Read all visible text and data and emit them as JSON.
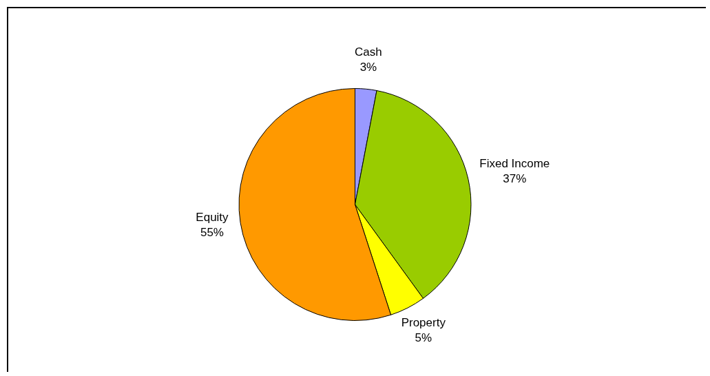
{
  "chart_data": {
    "type": "pie",
    "categories": [
      "Cash",
      "Fixed Income",
      "Property",
      "Equity"
    ],
    "values": [
      3,
      37,
      5,
      55
    ],
    "value_labels": [
      "3%",
      "37%",
      "5%",
      "55%"
    ],
    "colors": [
      "#9999ff",
      "#99cc00",
      "#ffff00",
      "#ff9900"
    ],
    "legend": false
  }
}
